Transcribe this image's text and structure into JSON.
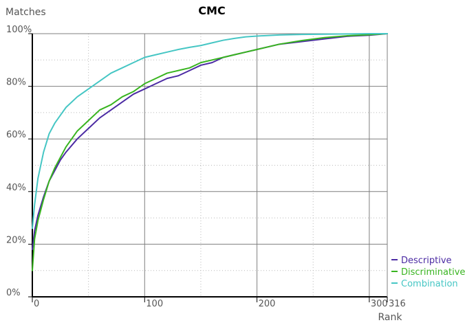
{
  "chart_data": {
    "type": "line",
    "title": "CMC",
    "xlabel": "Rank",
    "ylabel": "Matches",
    "x_ticks": [
      {
        "value": 0,
        "label": "0"
      },
      {
        "value": 100,
        "label": "100"
      },
      {
        "value": 200,
        "label": "200"
      },
      {
        "value": 300,
        "label": "300"
      },
      {
        "value": 316,
        "label": "316"
      }
    ],
    "y_ticks": [
      {
        "value": 0,
        "label": "0%"
      },
      {
        "value": 20,
        "label": "20%"
      },
      {
        "value": 40,
        "label": "40%"
      },
      {
        "value": 60,
        "label": "60%"
      },
      {
        "value": 80,
        "label": "80%"
      },
      {
        "value": 100,
        "label": "100%"
      }
    ],
    "xlim": [
      0,
      316
    ],
    "ylim": [
      0,
      100
    ],
    "grid": true,
    "legend_position": "bottom-right",
    "series": [
      {
        "name": "Descriptive",
        "color": "#4b2aa3",
        "points": [
          [
            0,
            18
          ],
          [
            2,
            25
          ],
          [
            5,
            31
          ],
          [
            10,
            38
          ],
          [
            15,
            44
          ],
          [
            20,
            48
          ],
          [
            25,
            52
          ],
          [
            30,
            55
          ],
          [
            40,
            60
          ],
          [
            50,
            64
          ],
          [
            60,
            68
          ],
          [
            70,
            71
          ],
          [
            80,
            74
          ],
          [
            90,
            77
          ],
          [
            100,
            79
          ],
          [
            110,
            81
          ],
          [
            120,
            83
          ],
          [
            130,
            84
          ],
          [
            140,
            86
          ],
          [
            150,
            88
          ],
          [
            160,
            89
          ],
          [
            170,
            91
          ],
          [
            180,
            92
          ],
          [
            190,
            93
          ],
          [
            200,
            94
          ],
          [
            220,
            96
          ],
          [
            240,
            97
          ],
          [
            260,
            98
          ],
          [
            280,
            99
          ],
          [
            300,
            99.4
          ],
          [
            316,
            100
          ]
        ]
      },
      {
        "name": "Discriminative",
        "color": "#38b41f",
        "points": [
          [
            0,
            10
          ],
          [
            2,
            22
          ],
          [
            5,
            29
          ],
          [
            10,
            37
          ],
          [
            15,
            44
          ],
          [
            20,
            49
          ],
          [
            25,
            53
          ],
          [
            30,
            57
          ],
          [
            40,
            63
          ],
          [
            50,
            67
          ],
          [
            60,
            71
          ],
          [
            70,
            73
          ],
          [
            80,
            76
          ],
          [
            90,
            78
          ],
          [
            100,
            81
          ],
          [
            110,
            83
          ],
          [
            120,
            85
          ],
          [
            130,
            86
          ],
          [
            140,
            87
          ],
          [
            150,
            89
          ],
          [
            160,
            90
          ],
          [
            170,
            91
          ],
          [
            180,
            92
          ],
          [
            190,
            93
          ],
          [
            200,
            94
          ],
          [
            220,
            96
          ],
          [
            240,
            97.4
          ],
          [
            260,
            98.5
          ],
          [
            280,
            99.2
          ],
          [
            300,
            99.6
          ],
          [
            316,
            100
          ]
        ]
      },
      {
        "name": "Combination",
        "color": "#45c6c4",
        "points": [
          [
            0,
            26
          ],
          [
            2,
            35
          ],
          [
            5,
            45
          ],
          [
            10,
            55
          ],
          [
            15,
            62
          ],
          [
            20,
            66
          ],
          [
            25,
            69
          ],
          [
            30,
            72
          ],
          [
            40,
            76
          ],
          [
            50,
            79
          ],
          [
            60,
            82
          ],
          [
            70,
            85
          ],
          [
            80,
            87
          ],
          [
            90,
            89
          ],
          [
            100,
            91
          ],
          [
            110,
            92
          ],
          [
            120,
            93
          ],
          [
            130,
            94
          ],
          [
            140,
            94.8
          ],
          [
            150,
            95.5
          ],
          [
            160,
            96.5
          ],
          [
            170,
            97.5
          ],
          [
            180,
            98.2
          ],
          [
            190,
            98.8
          ],
          [
            200,
            99.1
          ],
          [
            220,
            99.5
          ],
          [
            240,
            99.7
          ],
          [
            260,
            99.8
          ],
          [
            280,
            99.9
          ],
          [
            300,
            100
          ],
          [
            316,
            100
          ]
        ]
      }
    ]
  }
}
